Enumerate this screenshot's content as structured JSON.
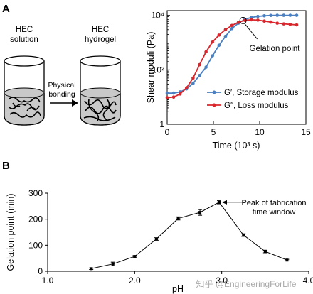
{
  "panel_a": {
    "letter": "A",
    "schematic": {
      "left_label_1": "HEC",
      "left_label_2": "solution",
      "right_label_1": "HEC",
      "right_label_2": "hydrogel",
      "arrow_label_1": "Physical",
      "arrow_label_2": "bonding"
    }
  },
  "panel_b": {
    "letter": "B"
  },
  "watermark": "知乎 @EngineeringForLife",
  "colors": {
    "storage": "#4a7fc1",
    "loss": "#d9262c",
    "marker": "#333333"
  },
  "chart_data": [
    {
      "id": "rheology",
      "type": "line",
      "title": "",
      "xlabel": "Time (10³ s)",
      "ylabel": "Shear moduli (Pa)",
      "xlim": [
        0,
        15
      ],
      "ylim": [
        1,
        15000
      ],
      "yscale": "log",
      "xticks": [
        0,
        5,
        10,
        15
      ],
      "yticks": [
        {
          "value": 1,
          "label": "1"
        },
        {
          "value": 100,
          "label": "10²"
        },
        {
          "value": 10000,
          "label": "10⁴"
        }
      ],
      "legend": "lower-right",
      "series": [
        {
          "name": "G′, Storage modulus",
          "color": "#4a7fc1",
          "x": [
            0,
            0.7,
            1.4,
            2.1,
            2.8,
            3.5,
            4.2,
            4.9,
            5.6,
            6.3,
            7.0,
            7.7,
            8.4,
            9.1,
            9.8,
            10.5,
            11.2,
            11.9,
            12.6,
            13.3,
            14.0
          ],
          "y": [
            14,
            14,
            15.5,
            20,
            32,
            62,
            125,
            330,
            800,
            1700,
            3300,
            5200,
            7200,
            8400,
            9200,
            9700,
            10000,
            10100,
            10100,
            10100,
            10100
          ]
        },
        {
          "name": "G″, Loss modulus",
          "color": "#d9262c",
          "x": [
            0,
            0.7,
            1.4,
            2.1,
            2.8,
            3.5,
            4.2,
            4.9,
            5.6,
            6.3,
            7.0,
            7.7,
            8.4,
            9.1,
            9.8,
            10.5,
            11.2,
            11.9,
            12.6,
            13.3,
            14.0
          ],
          "y": [
            9.5,
            10,
            13,
            22,
            50,
            155,
            460,
            1050,
            1900,
            3000,
            4300,
            5600,
            6600,
            6900,
            6700,
            6200,
            5700,
            5200,
            4900,
            4700,
            4500
          ]
        }
      ],
      "annotations": [
        {
          "text": "Gelation point",
          "x": 8.2,
          "y": 6500
        }
      ]
    },
    {
      "id": "gelation_vs_ph",
      "type": "scatter",
      "title": "",
      "xlabel": "pH",
      "ylabel": "Gelation point (min)",
      "xlim": [
        1.0,
        4.0
      ],
      "ylim": [
        0,
        300
      ],
      "xticks": [
        {
          "value": 1.0,
          "label": "1.0"
        },
        {
          "value": 2.0,
          "label": "2.0"
        },
        {
          "value": 3.0,
          "label": "3.0"
        },
        {
          "value": 4.0,
          "label": "4.0"
        }
      ],
      "yticks": [
        0,
        100,
        200,
        300
      ],
      "series": [
        {
          "x": [
            1.5,
            1.75,
            2.0,
            2.25,
            2.5,
            2.75,
            2.97,
            3.25,
            3.5,
            3.75
          ],
          "y": [
            10,
            28,
            57,
            124,
            203,
            226,
            265,
            139,
            76,
            43
          ],
          "err": [
            3,
            7,
            3,
            5,
            6,
            11,
            6,
            5,
            5,
            3
          ]
        }
      ],
      "annotations": [
        {
          "text_1": "Peak of fabrication",
          "text_2": "time window",
          "x": 2.97,
          "y": 265
        }
      ]
    }
  ]
}
